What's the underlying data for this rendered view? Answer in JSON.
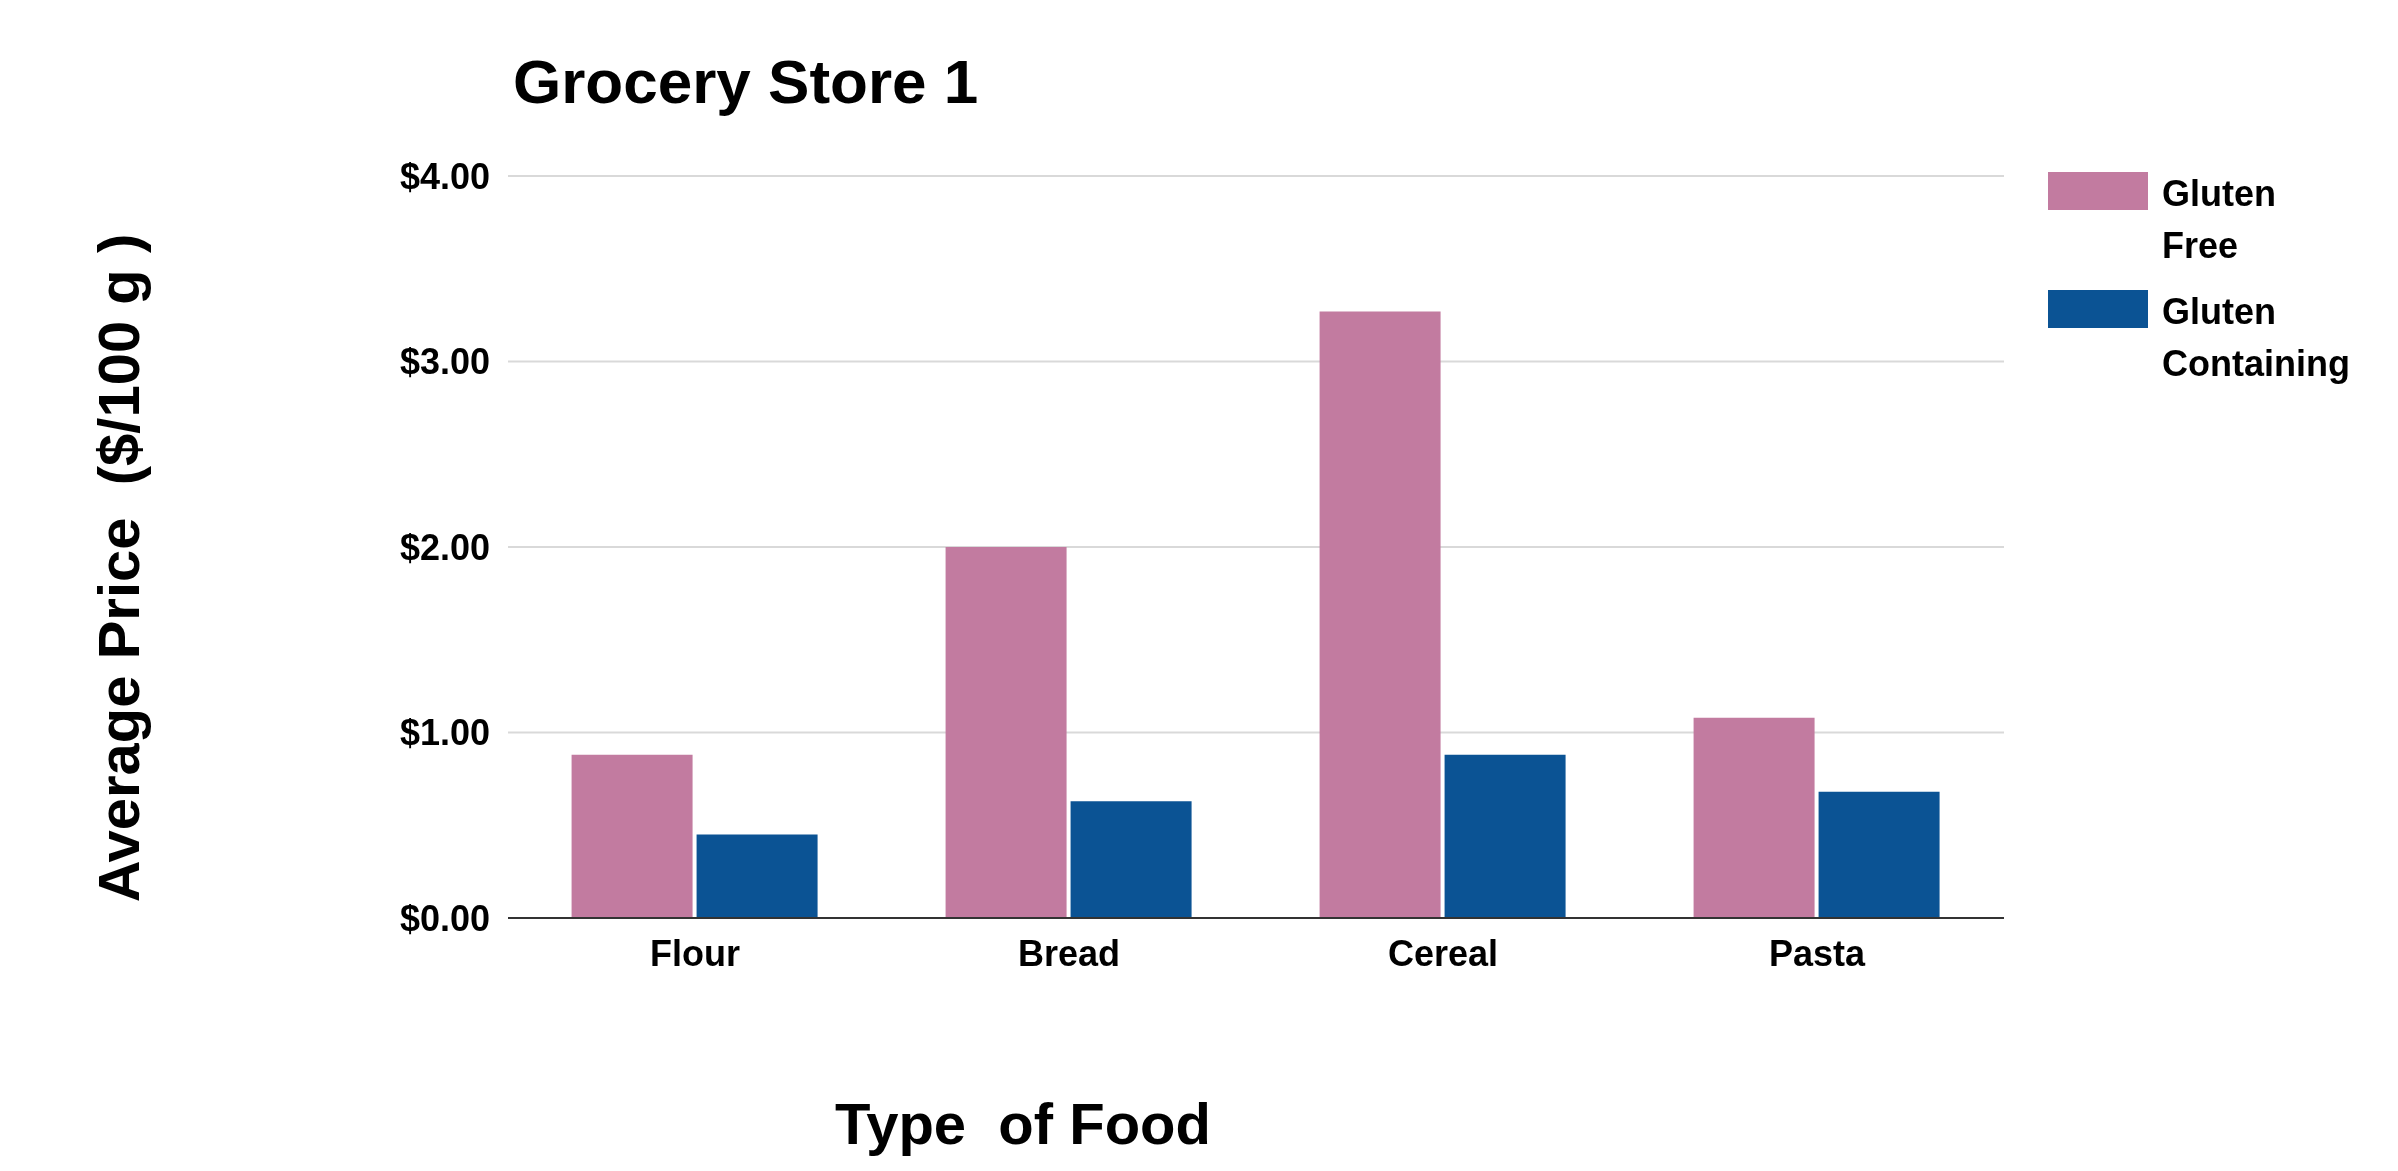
{
  "chart_data": {
    "type": "bar",
    "title": "Grocery Store 1",
    "xlabel": "Type  of Food",
    "ylabel": "Average Price  ($/100 g )",
    "categories": [
      "Flour",
      "Bread",
      "Cereal",
      "Pasta"
    ],
    "series": [
      {
        "name": "Gluten Free",
        "color": "#c27ba0",
        "values": [
          0.88,
          2.0,
          3.27,
          1.08
        ]
      },
      {
        "name": "Gluten Containing",
        "color": "#0b5394",
        "values": [
          0.45,
          0.63,
          0.88,
          0.68
        ]
      }
    ],
    "ylim": [
      0,
      4
    ],
    "yticks": [
      {
        "value": 0,
        "label": "$0.00"
      },
      {
        "value": 1,
        "label": "$1.00"
      },
      {
        "value": 2,
        "label": "$2.00"
      },
      {
        "value": 3,
        "label": "$3.00"
      },
      {
        "value": 4,
        "label": "$4.00"
      }
    ],
    "grid": "y",
    "legend": "top right"
  }
}
